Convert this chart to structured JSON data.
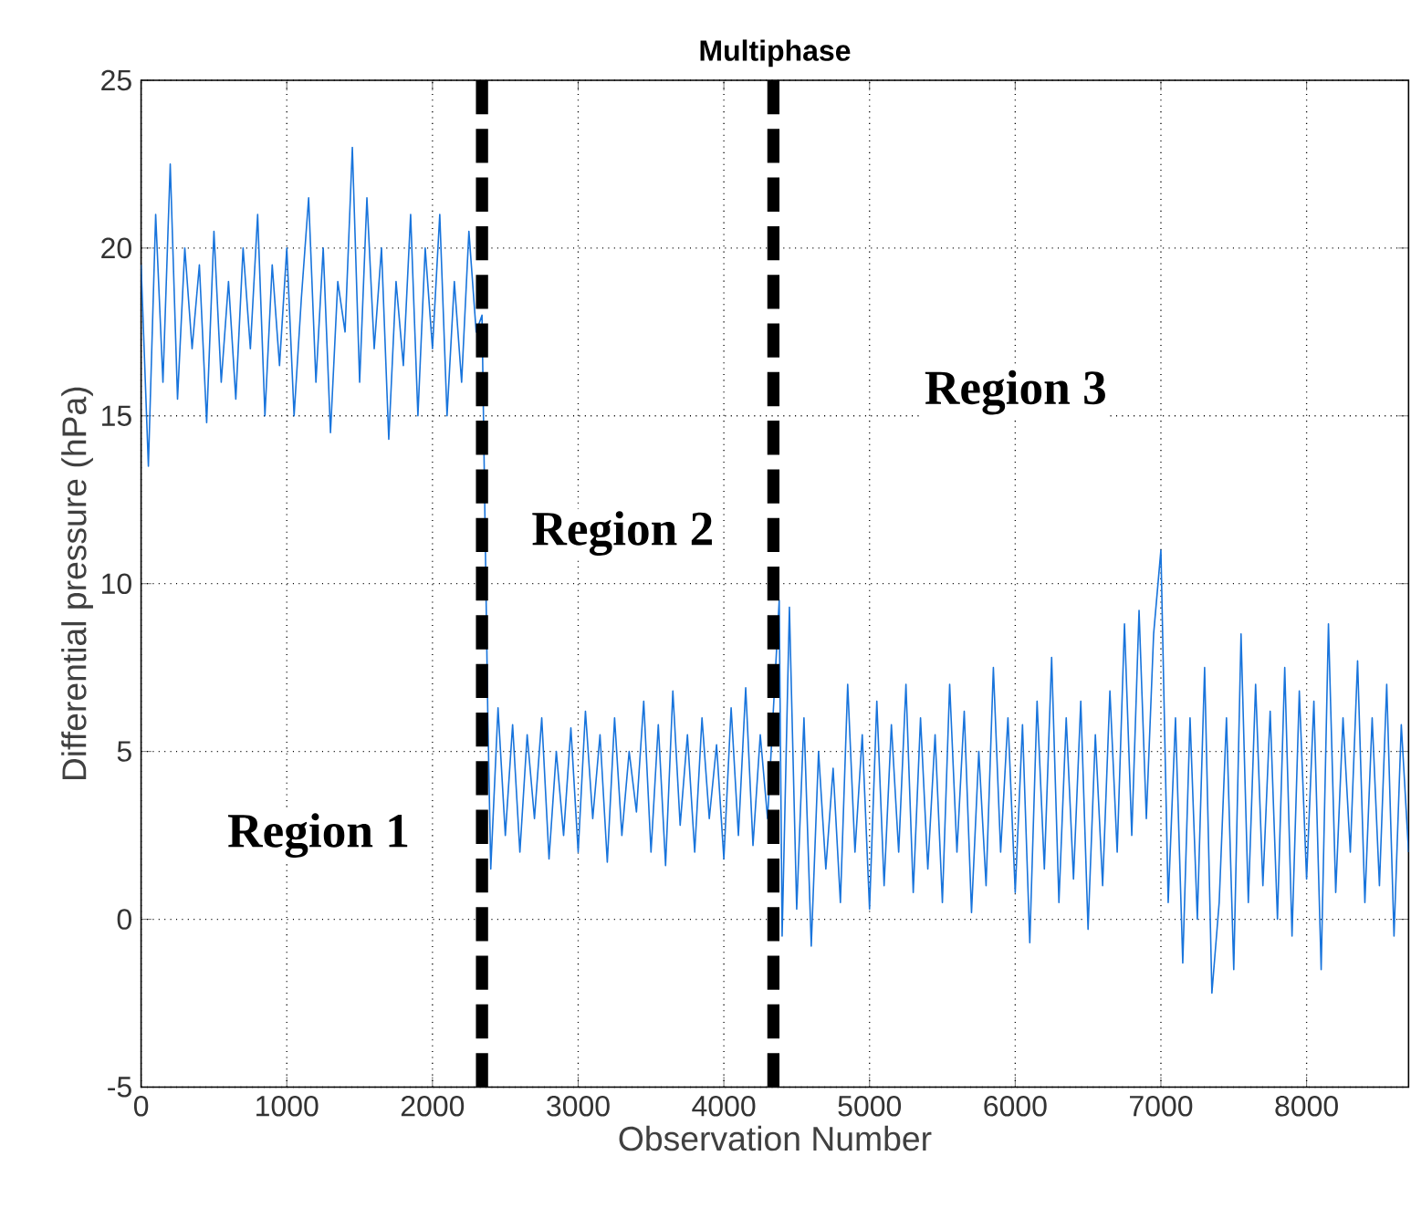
{
  "chart_data": {
    "type": "line",
    "title": "Multiphase",
    "xlabel": "Observation Number",
    "ylabel": "Differential pressure (hPa)",
    "xlim": [
      0,
      8700
    ],
    "ylim": [
      -5,
      25
    ],
    "xticks": [
      0,
      1000,
      2000,
      3000,
      4000,
      5000,
      6000,
      7000,
      8000
    ],
    "yticks": [
      -5,
      0,
      5,
      10,
      15,
      20,
      25
    ],
    "grid": true,
    "line_style": "solid",
    "marker": "none",
    "series": [
      {
        "color": "#1874dc",
        "x": [
          0,
          50,
          100,
          150,
          200,
          250,
          300,
          350,
          400,
          450,
          500,
          550,
          600,
          650,
          700,
          750,
          800,
          850,
          900,
          950,
          1000,
          1050,
          1100,
          1150,
          1200,
          1250,
          1300,
          1350,
          1400,
          1450,
          1500,
          1550,
          1600,
          1650,
          1700,
          1750,
          1800,
          1850,
          1900,
          1950,
          2000,
          2050,
          2100,
          2150,
          2200,
          2250,
          2300,
          2340,
          2380,
          2400,
          2450,
          2500,
          2550,
          2600,
          2650,
          2700,
          2750,
          2800,
          2850,
          2900,
          2950,
          3000,
          3050,
          3100,
          3150,
          3200,
          3250,
          3300,
          3350,
          3400,
          3450,
          3500,
          3550,
          3600,
          3650,
          3700,
          3750,
          3800,
          3850,
          3900,
          3950,
          4000,
          4050,
          4100,
          4150,
          4200,
          4250,
          4300,
          4340,
          4380,
          4400,
          4450,
          4500,
          4550,
          4600,
          4650,
          4700,
          4750,
          4800,
          4850,
          4900,
          4950,
          5000,
          5050,
          5100,
          5150,
          5200,
          5250,
          5300,
          5350,
          5400,
          5450,
          5500,
          5550,
          5600,
          5650,
          5700,
          5750,
          5800,
          5850,
          5900,
          5950,
          6000,
          6050,
          6100,
          6150,
          6200,
          6250,
          6300,
          6350,
          6400,
          6450,
          6500,
          6550,
          6600,
          6650,
          6700,
          6750,
          6800,
          6850,
          6900,
          6950,
          7000,
          7050,
          7100,
          7150,
          7200,
          7250,
          7300,
          7350,
          7400,
          7450,
          7500,
          7550,
          7600,
          7650,
          7700,
          7750,
          7800,
          7850,
          7900,
          7950,
          8000,
          8050,
          8100,
          8150,
          8200,
          8250,
          8300,
          8350,
          8400,
          8450,
          8500,
          8550,
          8600,
          8650,
          8700
        ],
        "values": [
          19.5,
          13.5,
          21,
          16,
          22.5,
          15.5,
          20,
          17,
          19.5,
          14.8,
          20.5,
          16,
          19,
          15.5,
          20,
          17,
          21,
          15,
          19.5,
          16.5,
          20,
          15,
          18.5,
          21.5,
          16,
          20,
          14.5,
          19,
          17.5,
          23,
          16,
          21.5,
          17,
          20,
          14.3,
          19,
          16.5,
          21,
          15,
          20,
          17,
          21,
          15,
          19,
          16,
          20.5,
          17.5,
          18,
          6,
          1.5,
          6.3,
          2.5,
          5.8,
          2,
          5.5,
          3,
          6,
          1.8,
          5,
          2.5,
          5.7,
          2,
          6.2,
          3,
          5.5,
          1.7,
          6,
          2.5,
          5,
          3.2,
          6.5,
          2,
          5.8,
          1.6,
          6.8,
          2.8,
          5.5,
          2,
          6,
          3,
          5.2,
          1.8,
          6.3,
          2.5,
          6.9,
          2.2,
          5.5,
          3,
          null,
          9.5,
          -0.5,
          9.3,
          0.3,
          6,
          -0.8,
          5,
          1.5,
          4.5,
          0.5,
          7,
          2,
          5.5,
          0.3,
          6.5,
          1,
          5.8,
          2,
          7,
          0.8,
          6,
          1.5,
          5.5,
          0.5,
          7,
          2,
          6.2,
          0.2,
          5,
          1,
          7.5,
          2,
          6,
          0.8,
          5.8,
          -0.7,
          6.5,
          1.5,
          7.8,
          0.5,
          6,
          1.2,
          6.5,
          -0.3,
          5.5,
          1,
          6.8,
          2,
          8.8,
          2.5,
          9.2,
          3,
          8.5,
          11,
          0.5,
          6,
          -1.3,
          6,
          0,
          7.5,
          -2.2,
          0.5,
          6,
          -1.5,
          8.5,
          0.5,
          7,
          1,
          6.2,
          0,
          7.5,
          -0.5,
          6.8,
          1.2,
          6.5,
          -1.5,
          8.8,
          0.8,
          6,
          2,
          7.7,
          0.5,
          6,
          1,
          7,
          -0.5,
          5.8,
          2
        ]
      }
    ],
    "ref_lines": [
      {
        "axis": "x",
        "value": 2340,
        "color": "#000000",
        "line_style": "dashed"
      },
      {
        "axis": "x",
        "value": 4340,
        "color": "#000000",
        "line_style": "dashed"
      }
    ],
    "annotations": [
      "Region 1",
      "Region 2",
      "Region 3"
    ]
  }
}
